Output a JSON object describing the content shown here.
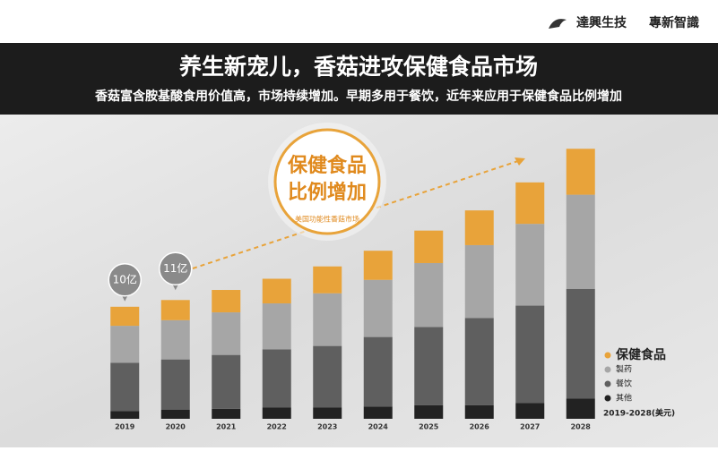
{
  "brand": "達興生技",
  "brand_tagline": "專新智識",
  "chart_data": {
    "type": "stacked-bar",
    "title": "养生新宠儿，香菇进攻保健食品市场",
    "subtitle": "香菇富含胺基酸食用价值高，市场持续增加。早期多用于餐饮，近年来应用于保健食品比例增加",
    "badge": {
      "headline": [
        "保健食品",
        "比例增加"
      ],
      "caption": "美国功能性香菇市场"
    },
    "note": "2019-2028(美元)",
    "categories": [
      "2019",
      "2020",
      "2021",
      "2022",
      "2023",
      "2024",
      "2025",
      "2026",
      "2027",
      "2028"
    ],
    "series": [
      {
        "name": "其他",
        "color": "#222222",
        "values": [
          0.7,
          0.8,
          0.9,
          1.0,
          1.0,
          1.1,
          1.2,
          1.2,
          1.4,
          1.8
        ]
      },
      {
        "name": "餐饮",
        "color": "#5f5f5f",
        "values": [
          4.3,
          4.5,
          4.8,
          5.2,
          5.5,
          6.2,
          7.0,
          7.8,
          8.7,
          9.8
        ]
      },
      {
        "name": "製药",
        "color": "#a6a6a6",
        "values": [
          3.3,
          3.5,
          3.8,
          4.1,
          4.7,
          5.1,
          5.7,
          6.5,
          7.3,
          8.4
        ]
      },
      {
        "name": "保健食品",
        "color": "#e8a33a",
        "values": [
          1.7,
          1.8,
          2.0,
          2.2,
          2.4,
          2.6,
          2.9,
          3.1,
          3.7,
          4.1
        ]
      }
    ],
    "annotations": [
      {
        "x": "2019",
        "value": 10,
        "label": "10亿"
      },
      {
        "x": "2020",
        "value": 11,
        "label": "11亿"
      }
    ],
    "ylim": [
      0,
      25
    ]
  }
}
